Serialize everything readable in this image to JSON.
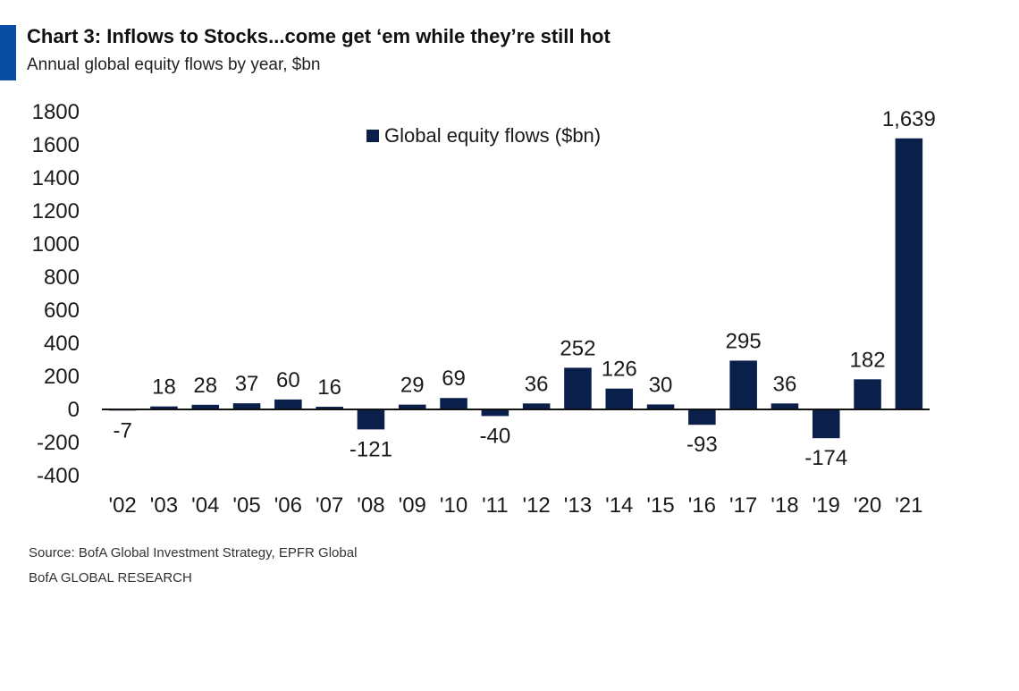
{
  "header": {
    "title": "Chart 3: Inflows to Stocks...come get ‘em while they’re still hot",
    "subtitle": "Annual global equity flows by year, $bn"
  },
  "footer": {
    "source": "Source:  BofA Global Investment Strategy, EPFR Global",
    "brand": "BofA GLOBAL RESEARCH"
  },
  "colors": {
    "bar": "#0b1f4b",
    "accent": "#0a4ea3",
    "axis": "#111111",
    "text": "#1a1a1a"
  },
  "chart_data": {
    "type": "bar",
    "title": "Chart 3: Inflows to Stocks...come get ‘em while they’re still hot",
    "subtitle": "Annual global equity flows by year, $bn",
    "xlabel": "",
    "ylabel": "",
    "ylim": [
      -400,
      1800
    ],
    "yticks": [
      1800,
      1600,
      1400,
      1200,
      1000,
      800,
      600,
      400,
      200,
      0,
      -200,
      -400
    ],
    "grid": false,
    "legend_position": "top-center",
    "series": [
      {
        "name": "Global equity flows ($bn)",
        "values": [
          -7,
          18,
          28,
          37,
          60,
          16,
          -121,
          29,
          69,
          -40,
          36,
          252,
          126,
          30,
          -93,
          295,
          36,
          -174,
          182,
          1639
        ]
      }
    ],
    "categories": [
      "'02",
      "'03",
      "'04",
      "'05",
      "'06",
      "'07",
      "'08",
      "'09",
      "'10",
      "'11",
      "'12",
      "'13",
      "'14",
      "'15",
      "'16",
      "'17",
      "'18",
      "'19",
      "'20",
      "'21"
    ],
    "data_labels": [
      "-7",
      "18",
      "28",
      "37",
      "60",
      "16",
      "-121",
      "29",
      "69",
      "-40",
      "36",
      "252",
      "126",
      "30",
      "-93",
      "295",
      "36",
      "-174",
      "182",
      "1,639"
    ]
  }
}
